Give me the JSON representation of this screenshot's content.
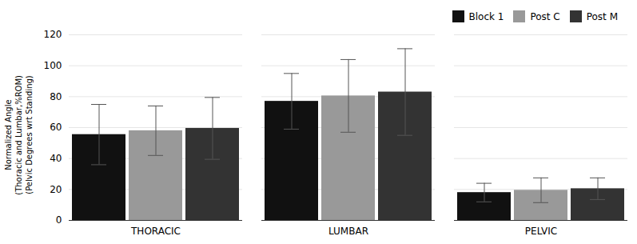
{
  "chart_data": {
    "type": "bar",
    "categories": [
      "THORACIC",
      "LUMBAR",
      "PELVIC"
    ],
    "series": [
      {
        "name": "Block 1",
        "color": "#111111",
        "values": [
          55.5,
          77,
          18
        ],
        "errors": [
          19.5,
          18,
          6
        ]
      },
      {
        "name": "Post C",
        "color": "#999999",
        "values": [
          58,
          80.5,
          19.5
        ],
        "errors": [
          16,
          23.5,
          8
        ]
      },
      {
        "name": "Post M",
        "color": "#333333",
        "values": [
          59.5,
          83,
          20.5
        ],
        "errors": [
          20,
          28,
          7
        ]
      }
    ],
    "y_label": "Normalized Angle\n(Thoracic and Lumbar,%ROM)\n(Pelvic Degrees wrt Standing)",
    "ylim": [
      0,
      120
    ],
    "yticks": [
      0,
      20,
      40,
      60,
      80,
      100,
      120
    ],
    "grid": true,
    "legend": "top right"
  }
}
